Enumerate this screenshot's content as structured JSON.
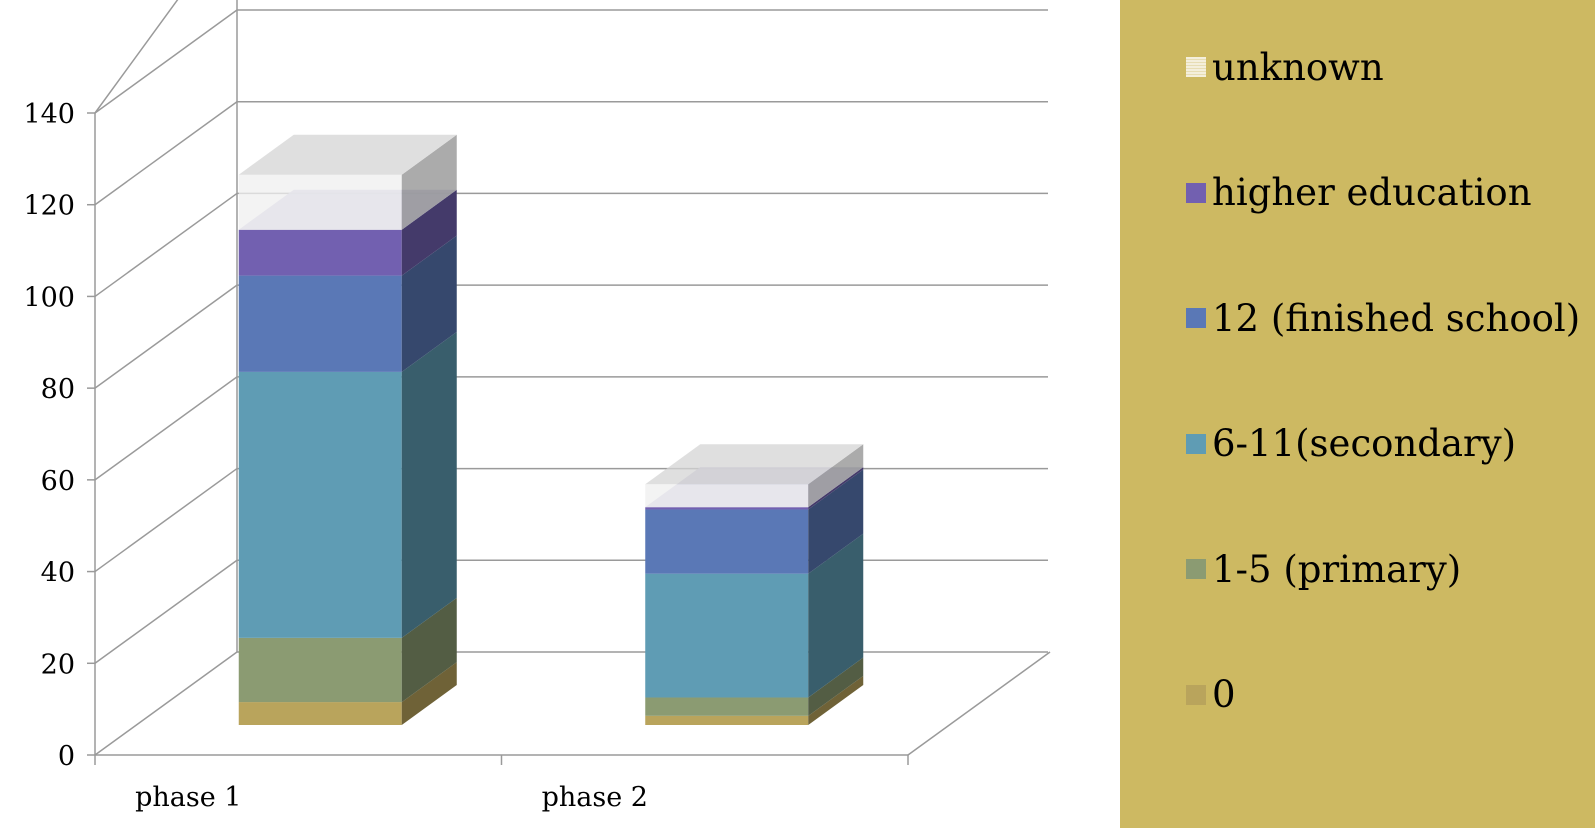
{
  "chart_data": {
    "type": "bar",
    "stacked": true,
    "three_d": true,
    "categories": [
      "phase 1",
      "phase 2"
    ],
    "series": [
      {
        "name": "0",
        "values": [
          5,
          2
        ],
        "color": "#b9a45c"
      },
      {
        "name": "1-5 (primary)",
        "values": [
          14,
          4
        ],
        "color": "#8b9b72"
      },
      {
        "name": "6-11(secondary)",
        "values": [
          58,
          27
        ],
        "color": "#5f9cb4"
      },
      {
        "name": "12 (finished school)",
        "values": [
          21,
          14
        ],
        "color": "#5a78b6"
      },
      {
        "name": "higher education",
        "values": [
          10,
          0.5
        ],
        "color": "#7260b0"
      },
      {
        "name": "unknown",
        "values": [
          12,
          5
        ],
        "color": "#f0f0f0"
      }
    ],
    "y_ticks": [
      "0",
      "20",
      "40",
      "60",
      "80",
      "100",
      "120",
      "140"
    ],
    "ylim": [
      0,
      140
    ],
    "grid": true,
    "legend_position": "right",
    "legend_order": [
      "unknown",
      "higher education",
      "12 (finished school)",
      "6-11(secondary)",
      "1-5 (primary)",
      "0"
    ],
    "legend_background": "#cdb962",
    "title": "",
    "xlabel": "",
    "ylabel": ""
  }
}
